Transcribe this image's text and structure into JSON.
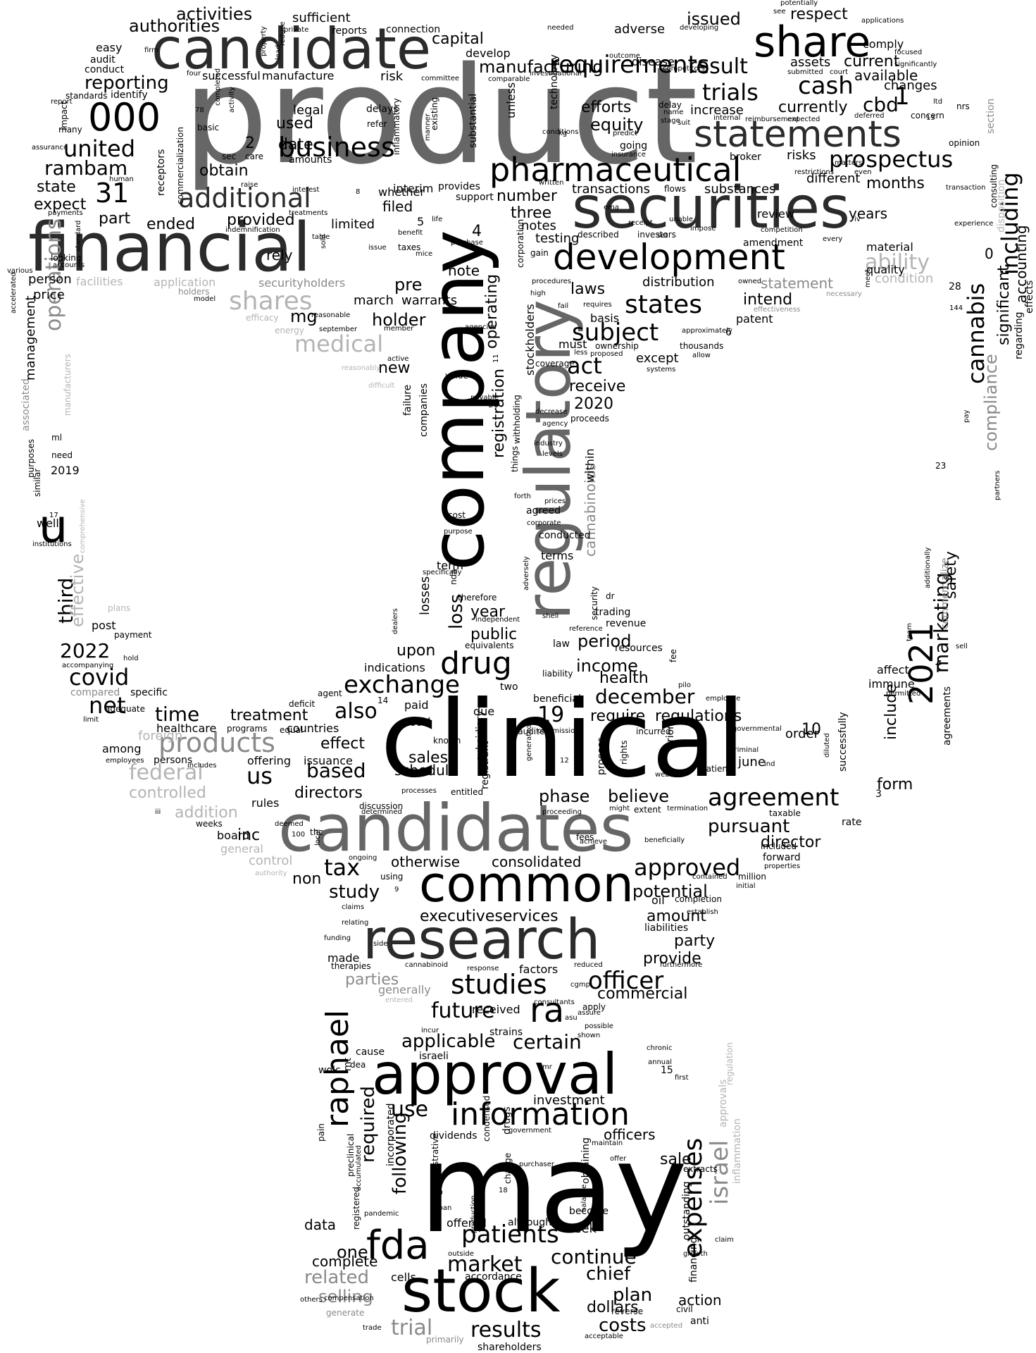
{
  "palette": {
    "black": "#000000",
    "dark": "#2b2b2b",
    "mid": "#666666",
    "grey": "#8a8a8a",
    "light": "#b4b4b4",
    "pale": "#cfcfcf"
  },
  "words": {
    "product": "product",
    "clinical": "clinical",
    "may": "may",
    "company": "company",
    "regulatory": "regulatory",
    "securities": "securities",
    "financial": "financial",
    "candidates": "candidates",
    "candidate": "candidate",
    "research": "research",
    "common": "common",
    "stock": "stock",
    "approval": "approval",
    "share": "share",
    "statements": "statements",
    "pharmaceutical": "pharmaceutical",
    "development": "development",
    "information": "information",
    "u": "u",
    "n000": "000",
    "fda": "fda",
    "n2021": "2021",
    "raphael": "raphael",
    "business": "business",
    "additional": "additional",
    "requirements": "requirements",
    "prospectus": "prospectus",
    "including": "including",
    "cannabis": "cannabis",
    "united": "united",
    "operations": "operations",
    "products": "products",
    "shares": "shares",
    "medical": "medical",
    "drug": "drug",
    "exchange": "exchange",
    "agreement": "agreement",
    "studies": "studies",
    "officer": "officer",
    "expenses": "expenses",
    "israel": "israel",
    "patients": "patients",
    "market": "market",
    "results": "results",
    "states": "states",
    "subject": "subject",
    "cash": "cash",
    "trials": "trials",
    "result": "result",
    "rambam": "rambam",
    "n31": "31",
    "covid": "covid",
    "net": "net",
    "time": "time",
    "federal": "federal",
    "tax": "tax",
    "approved": "approved",
    "certain": "certain",
    "future": "future",
    "ra": "ra",
    "applicable": "applicable",
    "use": "use",
    "required": "required",
    "following": "following",
    "related": "related",
    "selling": "selling",
    "trial": "trial",
    "continue": "continue",
    "plan": "plan",
    "chief": "chief",
    "costs": "costs",
    "dollars": "dollars",
    "action": "action",
    "manufacturing": "manufacturing",
    "capital": "capital",
    "issued": "issued",
    "respect": "respect",
    "current": "current",
    "available": "available",
    "authorities": "authorities",
    "activities": "activities",
    "sufficient": "sufficient",
    "reporting": "reporting",
    "successful": "successful",
    "manufacture": "manufacture",
    "risk": "risk",
    "legal": "legal",
    "used": "used",
    "date": "date",
    "obtain": "obtain",
    "state": "state",
    "expect": "expect",
    "part": "part",
    "ended": "ended",
    "provided": "provided",
    "limited": "limited",
    "filed": "filed",
    "rely": "rely",
    "mg": "mg",
    "person": "person",
    "price": "price",
    "management": "management",
    "third": "third",
    "effective": "effective",
    "n2022": "2022",
    "efforts": "efforts",
    "equity": "equity",
    "currently": "currently",
    "increase": "increase",
    "cbd": "cbd",
    "changes": "changes",
    "risks": "risks",
    "different": "different",
    "months": "months",
    "transactions": "transactions",
    "substances": "substances",
    "three": "three",
    "number": "number",
    "notes": "notes",
    "testing": "testing",
    "years": "years",
    "review": "review",
    "amendment": "amendment",
    "material": "material",
    "ability": "ability",
    "statement": "statement",
    "condition": "condition",
    "laws": "laws",
    "distribution": "distribution",
    "intend": "intend",
    "patent": "patent",
    "accounting": "accounting",
    "significant": "significant",
    "compliance": "compliance",
    "marketing": "marketing",
    "safety": "safety",
    "quality": "quality",
    "include": "include",
    "form": "form",
    "receive": "receive",
    "n2020": "2020",
    "act": "act",
    "except": "except",
    "operating": "operating",
    "registration": "registration",
    "loss": "loss",
    "year": "year",
    "public": "public",
    "period": "period",
    "income": "income",
    "december": "december",
    "health": "health",
    "require": "require",
    "regulations": "regulations",
    "n19": "19",
    "also": "also",
    "treatment": "treatment",
    "effect": "effect",
    "us": "us",
    "based": "based",
    "directors": "directors",
    "controlled": "controlled",
    "addition": "addition",
    "pursuant": "pursuant",
    "director": "director",
    "consolidated": "consolidated",
    "otherwise": "otherwise",
    "study": "study",
    "potential": "potential",
    "amount": "amount",
    "executiveservices": "executiveservices",
    "party": "party",
    "provide": "provide",
    "parties": "parties",
    "commercial": "commercial",
    "investment": "investment",
    "officers": "officers",
    "data": "data",
    "one": "one",
    "complete": "complete",
    "sale": "sale",
    "phase": "phase",
    "believe": "believe",
    "sales": "sales",
    "schedule": "schedule",
    "upon": "upon",
    "pre": "pre",
    "holder": "holder",
    "new": "new",
    "note": "note",
    "cannabinoids": "cannabinoids",
    "inc": "inc",
    "non": "non",
    "general": "general",
    "control": "control",
    "foreign": "foreign",
    "countries": "countries",
    "offering": "offering",
    "issuance": "issuance",
    "rules": "rules",
    "board": "board",
    "order": "order",
    "june": "june",
    "n10": "10",
    "n1": "1",
    "n2": "2",
    "n4": "4",
    "n0": "0",
    "f": "f",
    "facilities": "facilities",
    "application": "application",
    "securityholders": "securityholders",
    "warrants": "warrants",
    "march": "march",
    "n2019": "2019",
    "well": "well",
    "post": "post",
    "compared": "compared",
    "specific": "specific",
    "healthcare": "healthcare",
    "among": "among",
    "total": "total",
    "paid": "paid",
    "due": "due",
    "losses": "losses",
    "indications": "indications",
    "term": "term",
    "terms": "terms",
    "conducted": "conducted",
    "within": "within",
    "stockholders": "stockholders",
    "must": "must",
    "basis": "basis",
    "agreed": "agreed",
    "trading": "trading",
    "revenue": "revenue",
    "resources": "resources",
    "law": "law",
    "immune": "immune",
    "affect": "affect",
    "commercialize": "commercialize",
    "successfully": "successfully",
    "agreements": "agreements",
    "effects": "effects",
    "regarding": "regarding",
    "disposition": "disposition",
    "consulting": "consulting",
    "section": "section",
    "made": "made",
    "factors": "factors",
    "received": "received",
    "apply": "apply",
    "strains": "strains",
    "cause": "cause",
    "israeli": "israeli",
    "dividends": "dividends",
    "incorporated": "incorporated",
    "administrative": "administrative",
    "offered": "offered",
    "although": "although",
    "seek": "seek",
    "become": "become",
    "obtaining": "obtaining",
    "accordance": "accordance",
    "cells": "cells",
    "shareholders": "shareholders",
    "financing": "financing",
    "outstanding": "outstanding",
    "approvals": "approvals",
    "inflammation": "inflammation",
    "regulation": "regulation",
    "anti": "anti",
    "primarily": "primarily",
    "drugs": "drugs",
    "condensed": "condensed",
    "registered": "registered",
    "preclinical": "preclinical",
    "pain": "pain",
    "dea": "dea",
    "wolc": "wolc",
    "mt": "mt",
    "n15": "15",
    "n3": "3",
    "n28": "28",
    "n6": "6",
    "n5": "5",
    "n144": "144",
    "n30": "30",
    "n14": "14",
    "n23": "23",
    "adverse": "adverse",
    "disease": "disease",
    "comply": "comply",
    "develop": "develop",
    "connection": "connection",
    "reports": "reports",
    "easy": "easy",
    "audit": "audit",
    "conduct": "conduct",
    "identify": "identify",
    "assets": "assets",
    "unless": "unless",
    "technology": "technology",
    "substantial": "substantial",
    "inflammatory": "inflammatory",
    "existing": "existing",
    "interim": "interim",
    "whether": "whether",
    "provides": "provides",
    "support": "support",
    "going": "going",
    "delay": "delay",
    "sec": "sec",
    "care": "care",
    "commercialization": "commercialization",
    "receptors": "receptors",
    "amounts": "amounts",
    "broker": "broker",
    "concern": "concern",
    "opinion": "opinion",
    "nrs": "nrs",
    "delays": "delays",
    "refer": "refer",
    "impact": "impact",
    "many": "many",
    "associated": "associated",
    "manufacturers": "manufacturers",
    "purposes": "purposes",
    "similar": "similar",
    "need": "need",
    "ml": "ml",
    "institutions": "institutions",
    "comprehensive": "comprehensive",
    "payment": "payment",
    "plans": "plans",
    "accompanying": "accompanying",
    "hold": "hold",
    "adequate": "adequate",
    "limit": "limit",
    "persons": "persons",
    "includes": "includes",
    "employees": "employees",
    "programs": "programs",
    "equal": "equal",
    "deficit": "deficit",
    "agent": "agent",
    "unaudited": "unaudited",
    "commission": "commission",
    "known": "known",
    "subsidiary": "subsidiary",
    "registrant": "registrant",
    "generated": "generated",
    "process": "process",
    "rights": "rights",
    "incurred": "incurred",
    "prior": "prior",
    "website": "website",
    "patient": "patient",
    "criminal": "criminal",
    "ind": "ind",
    "diluted": "diluted",
    "taxable": "taxable",
    "rate": "rate",
    "forward": "forward",
    "included": "included",
    "million": "million",
    "initial": "initial",
    "properties": "properties",
    "contained": "contained",
    "completion": "completion",
    "oil": "oil",
    "establish": "establish",
    "liabilities": "liabilities",
    "furthermore": "furthermore",
    "reduced": "reduced",
    "cgmp": "cgmp",
    "consultants": "consultants",
    "assure": "assure",
    "asu": "asu",
    "possible": "possible",
    "shown": "shown",
    "incur": "incur",
    "chronic": "chronic",
    "annual": "annual",
    "first": "first",
    "maintain": "maintain",
    "offer": "offer",
    "extracts": "extracts",
    "claim": "claim",
    "growth": "growth",
    "civil": "civil",
    "reverse": "reverse",
    "accepted": "accepted",
    "acceptable": "acceptable",
    "entitled": "entitled",
    "discussion": "discussion",
    "determined": "determined",
    "proceeding": "proceeding",
    "might": "might",
    "extent": "extent",
    "termination": "termination",
    "fees": "fees",
    "achieve": "achieve",
    "beneficially": "beneficially",
    "beneficial": "beneficial",
    "two": "two",
    "liability": "liability",
    "pilo": "pilo",
    "fee": "fee",
    "weeks": "weeks",
    "deemed": "deemed",
    "thc": "thc",
    "local": "local",
    "n100": "100",
    "ongoing": "ongoing",
    "using": "using",
    "authority": "authority",
    "iii": "iii",
    "processes": "processes",
    "claims": "claims",
    "relating": "relating",
    "funding": "funding",
    "side": "side",
    "therapies": "therapies",
    "cannabinoid": "cannabinoid",
    "response": "response",
    "generally": "generally",
    "entered": "entered",
    "government": "government",
    "change": "change",
    "production": "production",
    "purchaser": "purchaser",
    "balance": "balance",
    "loan": "loan",
    "pandemic": "pandemic",
    "accumulated": "accumulated",
    "outside": "outside",
    "b": "b",
    "n18": "18",
    "compensation": "compensation",
    "others": "others",
    "generate": "generate",
    "trade": "trade",
    "dr": "dr",
    "shell": "shell",
    "reference": "reference",
    "independent": "independent",
    "equivalents": "equivalents",
    "dealers": "dealers",
    "nda": "nda",
    "therefore": "therefore",
    "adversely": "adversely",
    "specifically": "specifically",
    "security": "security",
    "cost": "cost",
    "purpose": "purpose",
    "corporate": "corporate",
    "prices": "prices",
    "forth": "forth",
    "things": "things",
    "withholding": "withholding",
    "industry": "industry",
    "levels": "levels",
    "agency": "agency",
    "decrease": "decrease",
    "payable": "payable",
    "value": "value",
    "proceeds": "proceeds",
    "failure": "failure",
    "companies": "companies",
    "coverage": "coverage",
    "high": "high",
    "fail": "fail",
    "less": "less",
    "proposed": "proposed",
    "ownership": "ownership",
    "gain": "gain",
    "corporation": "corporation",
    "procedures": "procedures",
    "requires": "requires",
    "agencies": "agencies",
    "systems": "systems",
    "thousands": "thousands",
    "allow": "allow",
    "approximately": "approximately",
    "effectiveness": "effectiveness",
    "owned": "owned",
    "necessary": "necessary",
    "meet": "meet",
    "every": "every",
    "experience": "experience",
    "restrictions": "restrictions",
    "matters": "matters",
    "competition": "competition",
    "unable": "unable",
    "set": "set",
    "receipt": "receipt",
    "investors": "investors",
    "described": "described",
    "impose": "impose",
    "competitors": "competitors",
    "ema": "ema",
    "flows": "flows",
    "transaction": "transaction",
    "written": "written",
    "conditions": "conditions",
    "insurance": "insurance",
    "predict": "predict",
    "kg": "kg",
    "suit": "suit",
    "stage": "stage",
    "name": "name",
    "internal": "internal",
    "reimbursement": "reimbursement",
    "expected": "expected",
    "submitted": "submitted",
    "court": "court",
    "even": "even",
    "deferred": "deferred",
    "focused": "focused",
    "significantly": "significantly",
    "applications": "applications",
    "potentially": "potentially",
    "see": "see",
    "needed": "needed",
    "outcome": "outcome",
    "developing": "developing",
    "investigational": "investigational",
    "comparable": "comparable",
    "committee": "committee",
    "reduce": "reduce",
    "lead": "lead",
    "private": "private",
    "property": "property",
    "firm": "firm",
    "four": "four",
    "standards": "standards",
    "report": "report",
    "basic": "basic",
    "n78": "78",
    "completed": "completed",
    "activity": "activity",
    "assurance": "assurance",
    "human": "human",
    "standard": "standard",
    "payments": "payments",
    "looking": "looking",
    "accounts": "accounts",
    "various": "various",
    "accelerated": "accelerated",
    "n8": "8",
    "raise": "raise",
    "interest": "interest",
    "treatments": "treatments",
    "indemnification": "indemnification",
    "table": "table",
    "sold": "sold",
    "holders": "holders",
    "model": "model",
    "efficacy": "efficacy",
    "reasonable": "reasonable",
    "energy": "energy",
    "september": "september",
    "member": "member",
    "active": "active",
    "reasonably": "reasonably",
    "difficult": "difficult",
    "issue": "issue",
    "taxes": "taxes",
    "mice": "mice",
    "life": "life",
    "benefit": "benefit",
    "purchase": "purchase",
    "ltd": "ltd",
    "n13": "13",
    "iv": "iv",
    "sell": "sell",
    "team": "team",
    "permitted": "permitted",
    "employee": "employee",
    "governmental": "governmental",
    "additionally": "additionally",
    "partners": "partners",
    "pay": "pay",
    "n17": "17",
    "n12": "12",
    "n9": "9",
    "n11": "11",
    "manner": "manner",
    "mr": "mr"
  }
}
